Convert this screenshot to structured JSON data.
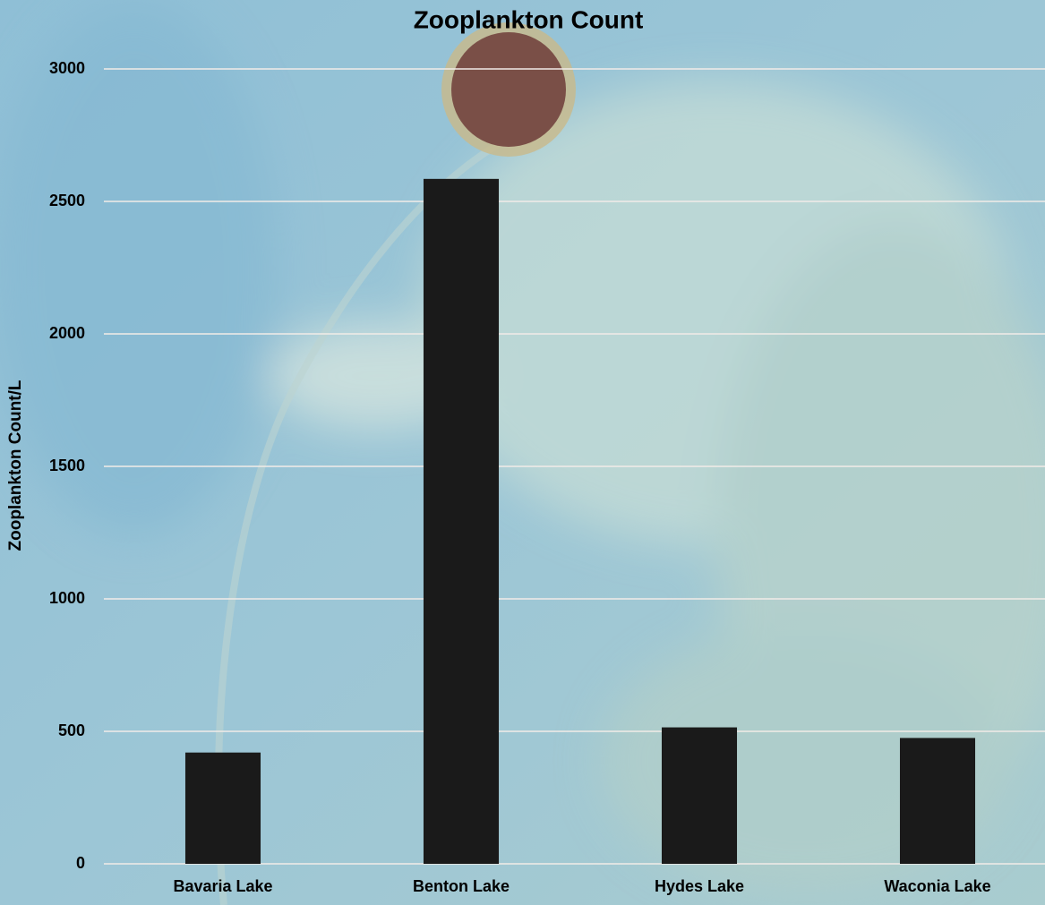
{
  "chart_data": {
    "type": "bar",
    "title": "Zooplankton Count",
    "ylabel": "Zooplankton Count/L",
    "categories": [
      "Bavaria Lake",
      "Benton Lake",
      "Hydes Lake",
      "Waconia Lake"
    ],
    "values": [
      420,
      2585,
      515,
      475
    ],
    "color": "#1a1a1a",
    "ylim": [
      0,
      3000
    ],
    "yticks": [
      0,
      500,
      1000,
      1500,
      2000,
      2500,
      3000
    ],
    "grid": true
  }
}
